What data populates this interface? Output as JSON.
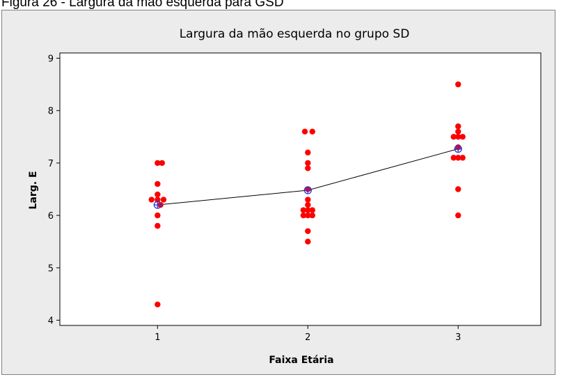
{
  "caption": "Figura 26 - Largura da mão esquerda para GSD",
  "chart_data": {
    "type": "scatter",
    "title": "Largura da mão esquerda no grupo SD",
    "xlabel": "Faixa Etária",
    "ylabel": "Larg. E",
    "xlim": [
      0.35,
      3.55
    ],
    "ylim": [
      3.9,
      9.1
    ],
    "x_ticks": [
      1,
      2,
      3
    ],
    "y_ticks": [
      4,
      5,
      6,
      7,
      8,
      9
    ],
    "grid": false,
    "colors": {
      "points": "#ff0000",
      "mean_marker": "#3333cc",
      "mean_line": "#000000",
      "plot_bg": "#ffffff",
      "frame_bg": "#ececec"
    },
    "series": [
      {
        "points": [
          [
            1,
            7.0
          ],
          [
            1.03,
            7.0
          ],
          [
            1,
            6.6
          ],
          [
            1,
            6.4
          ],
          [
            0.96,
            6.3
          ],
          [
            1,
            6.3
          ],
          [
            1.04,
            6.3
          ],
          [
            1.02,
            6.2
          ],
          [
            1,
            6.0
          ],
          [
            1,
            5.8
          ],
          [
            1,
            4.3
          ],
          [
            1.98,
            7.6
          ],
          [
            2.03,
            7.6
          ],
          [
            2,
            7.2
          ],
          [
            2,
            7.0
          ],
          [
            2,
            6.9
          ],
          [
            2,
            6.5
          ],
          [
            2,
            6.3
          ],
          [
            2,
            6.2
          ],
          [
            1.97,
            6.1
          ],
          [
            2,
            6.1
          ],
          [
            2.03,
            6.1
          ],
          [
            1.97,
            6.0
          ],
          [
            2,
            6.0
          ],
          [
            2.03,
            6.0
          ],
          [
            2,
            5.7
          ],
          [
            2,
            5.5
          ],
          [
            3,
            8.5
          ],
          [
            3,
            7.7
          ],
          [
            3,
            7.6
          ],
          [
            2.97,
            7.5
          ],
          [
            3,
            7.5
          ],
          [
            3.03,
            7.5
          ],
          [
            3,
            7.3
          ],
          [
            2.97,
            7.1
          ],
          [
            3,
            7.1
          ],
          [
            3.03,
            7.1
          ],
          [
            3,
            6.5
          ],
          [
            3,
            6.0
          ]
        ]
      }
    ],
    "means": [
      {
        "x": 1,
        "y": 6.2
      },
      {
        "x": 2,
        "y": 6.48
      },
      {
        "x": 3,
        "y": 7.27
      }
    ]
  }
}
